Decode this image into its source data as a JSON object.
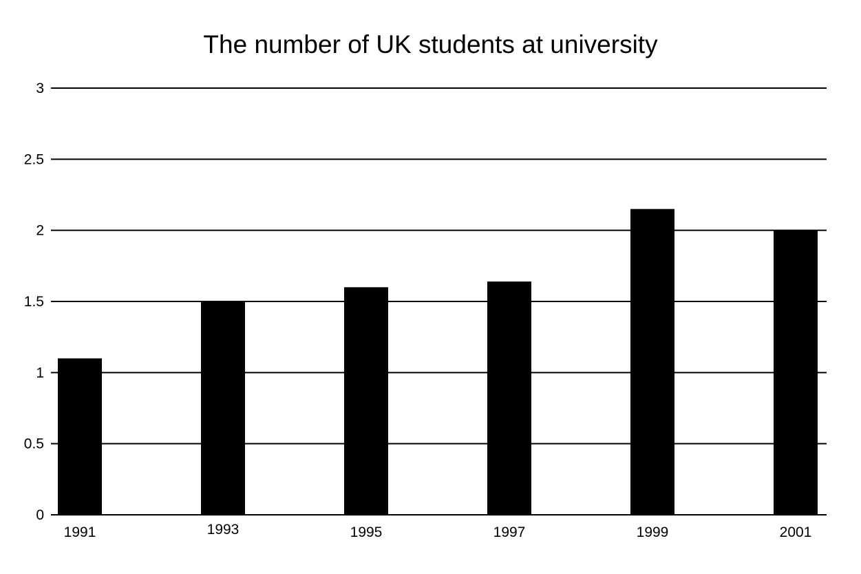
{
  "chart_data": {
    "type": "bar",
    "title": "The number of UK students at university",
    "xlabel": "",
    "ylabel": "",
    "categories": [
      "1991",
      "1993",
      "1995",
      "1997",
      "1999",
      "2001"
    ],
    "values": [
      1.1,
      1.5,
      1.6,
      1.64,
      2.15,
      2.0
    ],
    "ylim": [
      0,
      3
    ],
    "yticks": [
      0,
      0.5,
      1,
      1.5,
      2,
      2.5,
      3
    ],
    "ytick_labels": [
      "0",
      "0.5",
      "1",
      "1.5",
      "2",
      "2.5",
      "3"
    ],
    "grid": true,
    "legend": "none",
    "colors": {
      "bar": "#000000",
      "grid": "#000000",
      "text": "#000000"
    }
  }
}
